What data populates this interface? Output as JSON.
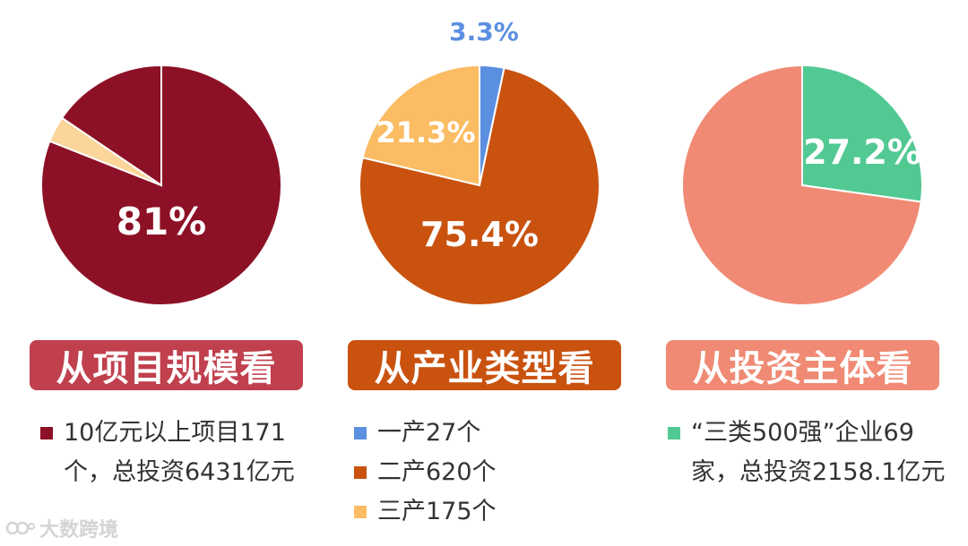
{
  "chart_data": [
    {
      "type": "pie",
      "slices": [
        {
          "value": 81,
          "color": "#8d1126",
          "label": "81%"
        },
        {
          "value": 3.5,
          "color": "#fbd59a",
          "label": ""
        },
        {
          "value": 15.5,
          "color": "#8d1126",
          "label": ""
        }
      ],
      "title": "从项目规模看",
      "title_color": "#c0404e",
      "legend": [
        {
          "color": "#8d1126",
          "text": "10亿元以上项目171个，总投资6431亿元"
        }
      ]
    },
    {
      "type": "pie",
      "slices": [
        {
          "value": 3.3,
          "color": "#5b8fe0",
          "label": "3.3%"
        },
        {
          "value": 75.4,
          "color": "#c9520f",
          "label": "75.4%"
        },
        {
          "value": 21.3,
          "color": "#fbbc63",
          "label": "21.3%"
        }
      ],
      "title": "从产业类型看",
      "title_color": "#c9520f",
      "legend": [
        {
          "color": "#5b8fe0",
          "text": "一产27个"
        },
        {
          "color": "#c9520f",
          "text": "二产620个"
        },
        {
          "color": "#fbbc63",
          "text": "三产175个"
        }
      ]
    },
    {
      "type": "pie",
      "slices": [
        {
          "value": 27.2,
          "color": "#52c993",
          "label": "27.2%"
        },
        {
          "value": 72.8,
          "color": "#f08a74",
          "label": ""
        }
      ],
      "title": "从投资主体看",
      "title_color": "#f08a74",
      "legend": [
        {
          "color": "#52c993",
          "text": "“三类500强”企业69家，总投资2158.1亿元"
        }
      ]
    }
  ],
  "watermark": "大数跨境"
}
